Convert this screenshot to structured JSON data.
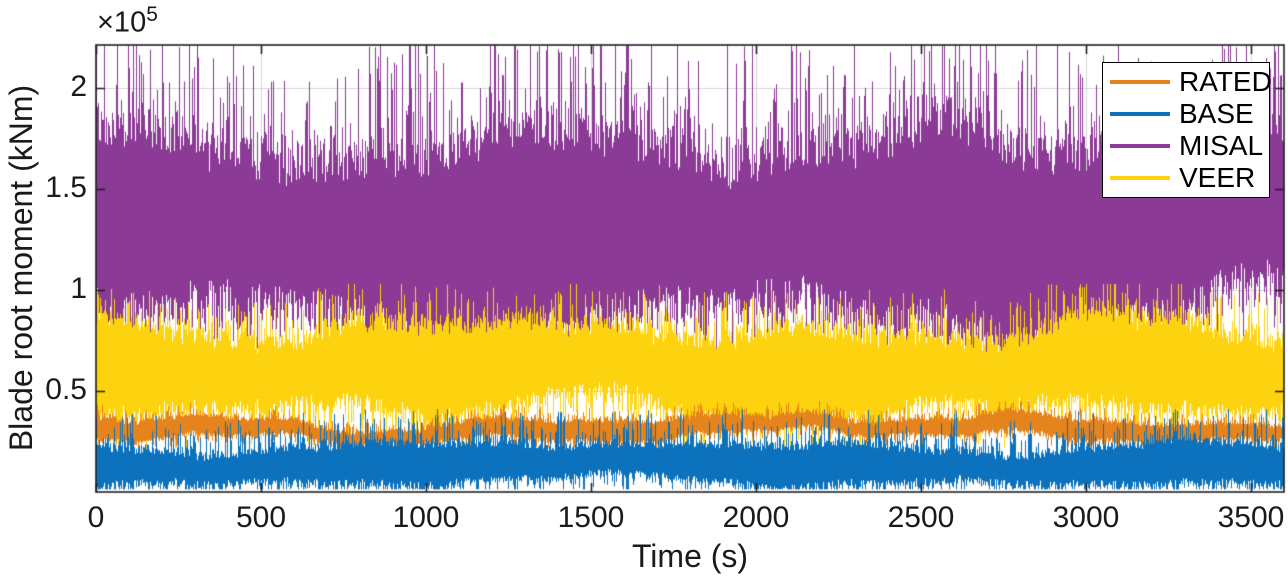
{
  "chart_data": {
    "type": "line",
    "title": "",
    "xlabel": "Time (s)",
    "ylabel": "Blade root moment (kNm)",
    "offset_base": "×10",
    "offset_exponent": "5",
    "xlim": [
      0,
      3600
    ],
    "ylim": [
      0,
      221500
    ],
    "x_ticks": [
      0,
      500,
      1000,
      1500,
      2000,
      2500,
      3000,
      3500
    ],
    "y_ticks": [
      {
        "value": 50000,
        "label": "0.5"
      },
      {
        "value": 100000,
        "label": "1"
      },
      {
        "value": 150000,
        "label": "1.5"
      },
      {
        "value": 200000,
        "label": "2"
      }
    ],
    "grid": true,
    "grid_color": "#d6d6d6",
    "axis_color": "#1f1f1f",
    "legend": {
      "position": "northeast",
      "entries": [
        "RATED",
        "BASE",
        "MISAL",
        "VEER"
      ],
      "border_color": "#000000",
      "background": "#ffffff"
    },
    "series": [
      {
        "name": "RATED",
        "color": "#e5831d",
        "draw_order": 3,
        "approx_mean": 31000,
        "approx_range": [
          23000,
          41000
        ],
        "synth": {
          "seed": 7,
          "center": 31500,
          "slow_amp": 3500,
          "half_width": 4300,
          "spike_up": 6000,
          "spike_down": 5000,
          "clip": [
            19000,
            45000
          ]
        }
      },
      {
        "name": "BASE",
        "color": "#0c72bd",
        "draw_order": 4,
        "approx_mean": 13500,
        "approx_range": [
          1500,
          40000
        ],
        "synth": {
          "seed": 11,
          "center": 13500,
          "slow_amp": 2000,
          "half_width": 9000,
          "spike_up": 18000,
          "spike_down": 9000,
          "clip": [
            1300,
            41000
          ]
        }
      },
      {
        "name": "MISAL",
        "color": "#8b3a96",
        "draw_order": 1,
        "approx_mean": 133000,
        "approx_range": [
          60000,
          222000
        ],
        "synth": {
          "seed": 5,
          "center": 128000,
          "slow_amp": 9000,
          "half_width": 45000,
          "spike_up": 60000,
          "spike_down": 24000,
          "clip": [
            56000,
            224000
          ]
        }
      },
      {
        "name": "VEER",
        "color": "#fdd20f",
        "draw_order": 2,
        "approx_mean": 61000,
        "approx_range": [
          20000,
          102000
        ],
        "synth": {
          "seed": 3,
          "center": 61500,
          "slow_amp": 5000,
          "half_width": 20000,
          "spike_up": 22000,
          "spike_down": 20000,
          "clip": [
            17000,
            103000
          ]
        }
      }
    ]
  }
}
